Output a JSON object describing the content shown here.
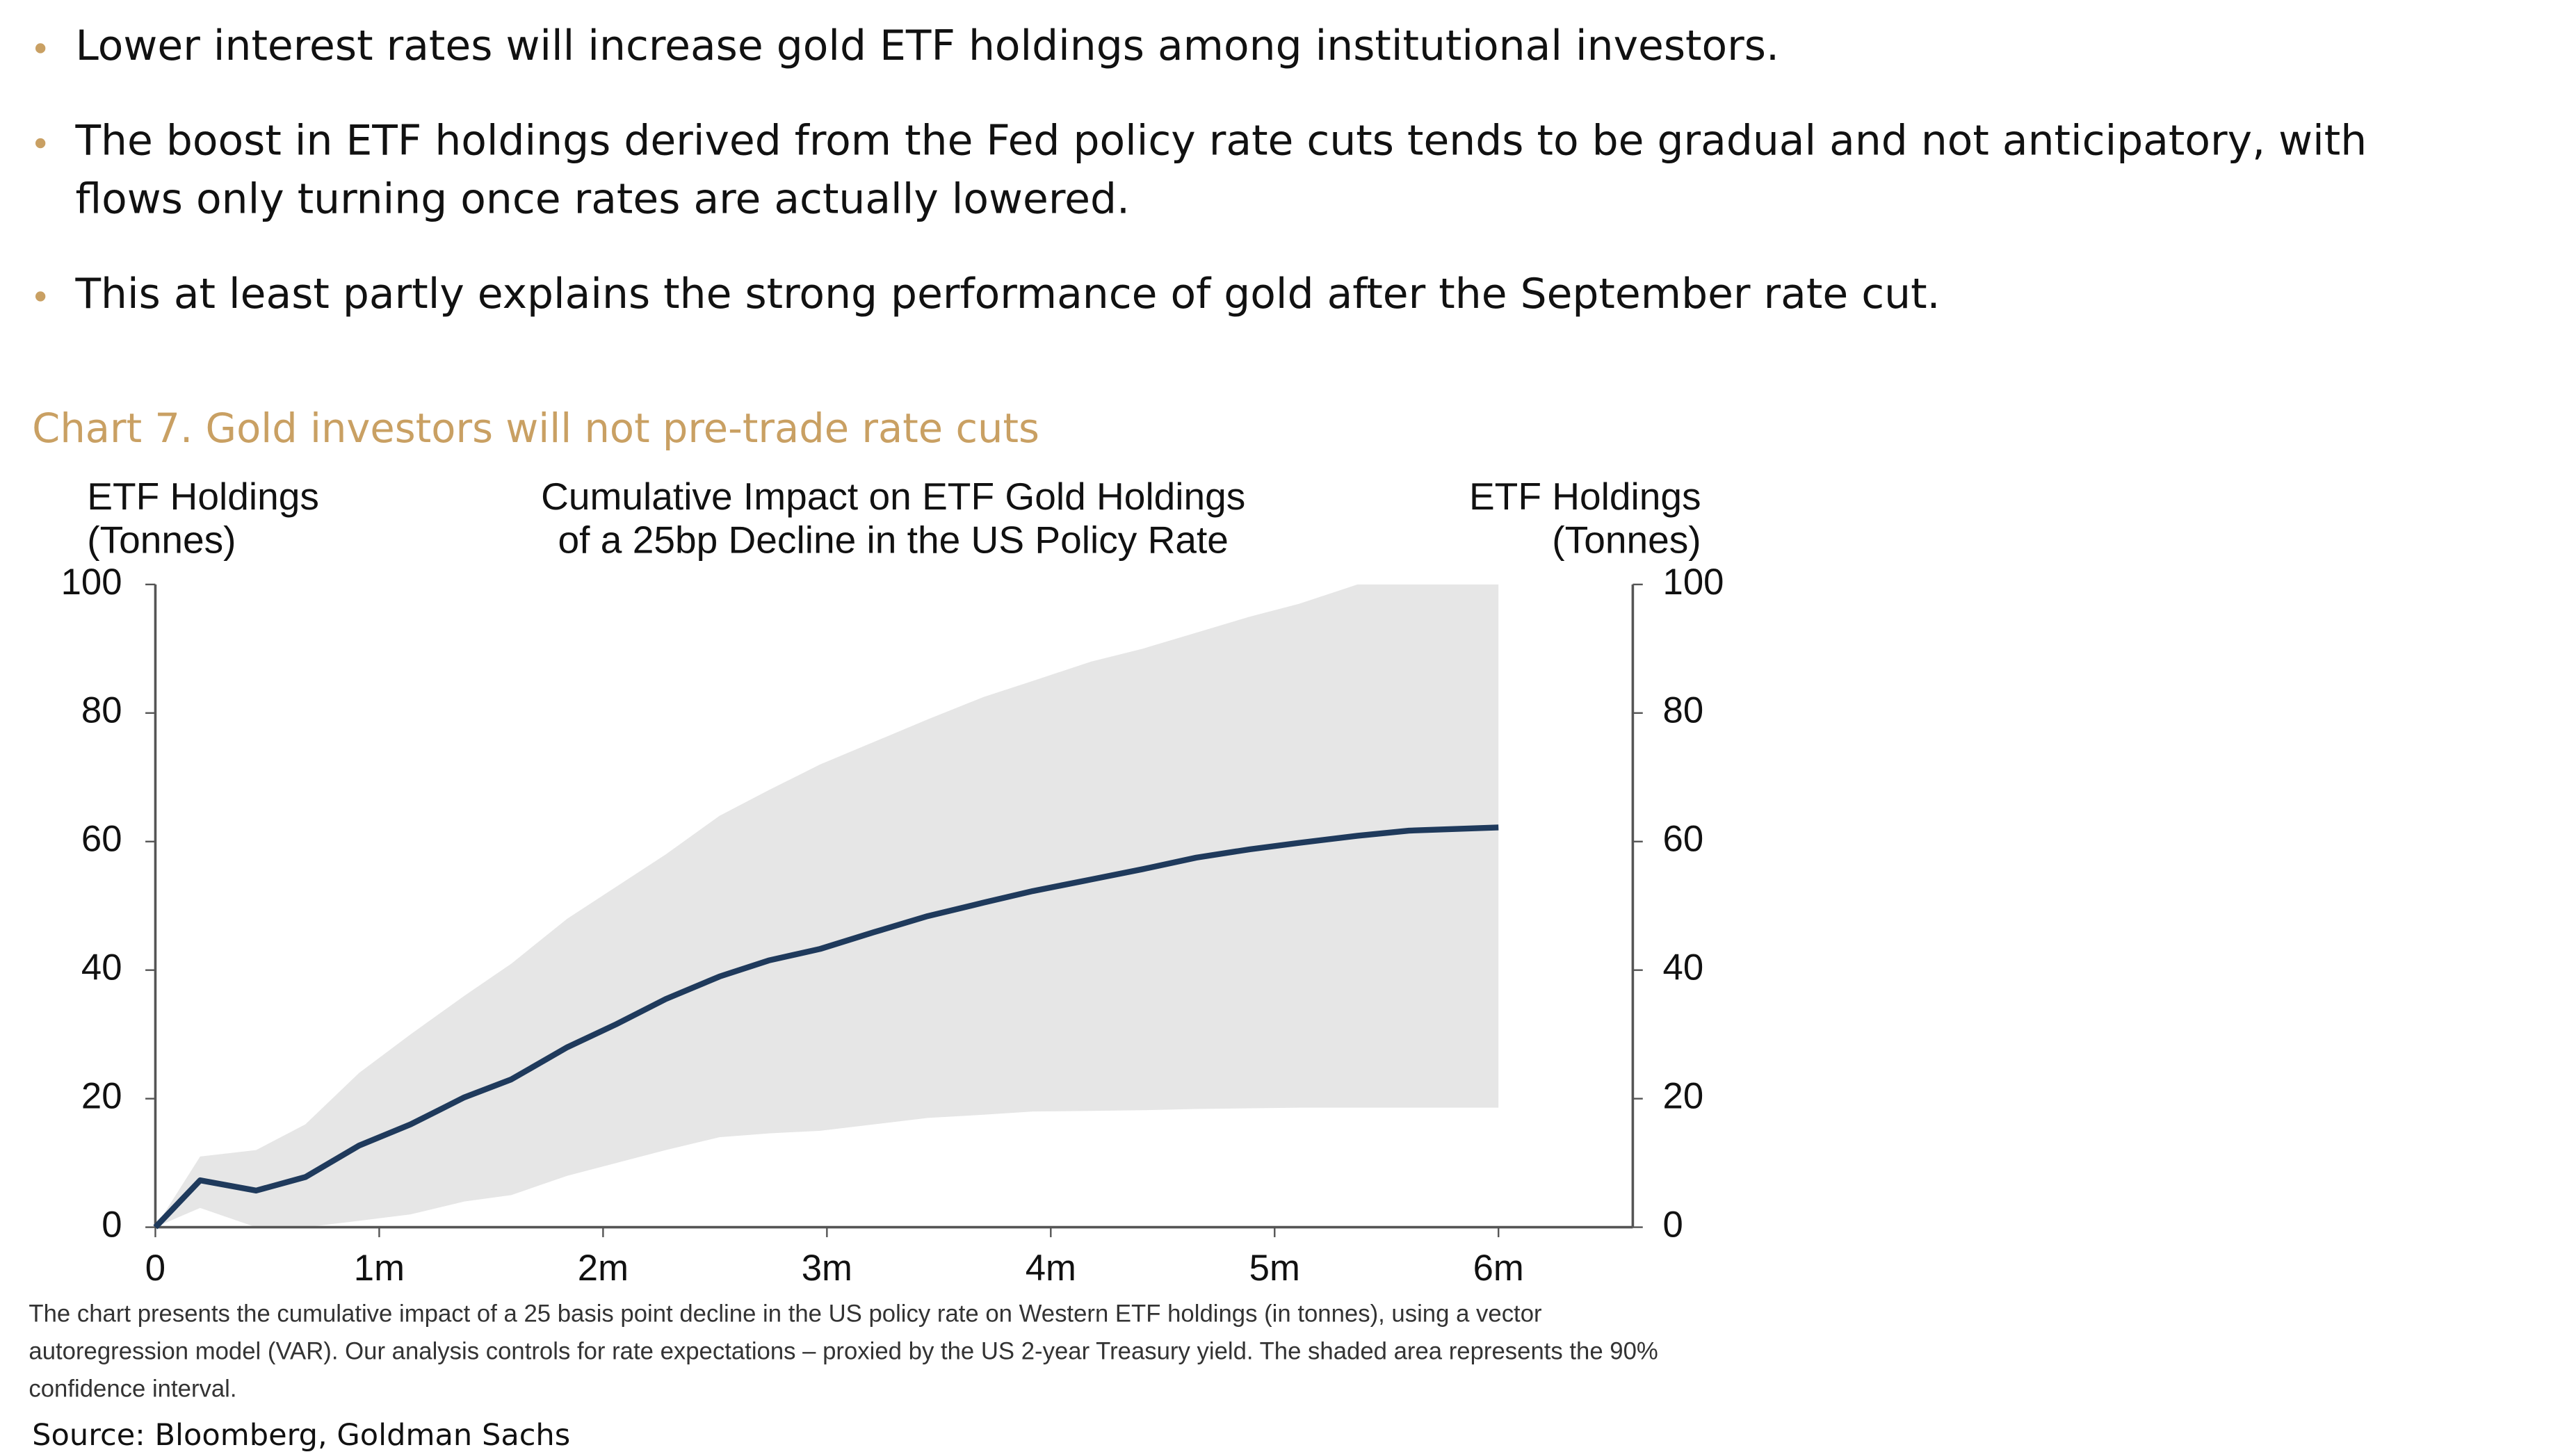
{
  "bullets": [
    [
      "Lower interest rates will increase gold ETF holdings among institutional investors."
    ],
    [
      "The boost in ETF holdings derived from the Fed policy rate cuts tends to be gradual and not anticipatory, with",
      "flows only turning once rates are actually lowered."
    ],
    [
      "This at least partly explains the strong performance of gold after the September rate cut."
    ]
  ],
  "chart_heading": "Chart 7. Gold investors will not pre-trade rate cuts",
  "chart_data": {
    "type": "line",
    "title": [
      "Cumulative Impact on ETF Gold Holdings",
      "of a 25bp Decline in the US Policy Rate"
    ],
    "ylabel": [
      "ETF Holdings",
      "(Tonnes)"
    ],
    "y2label": [
      "ETF Holdings",
      "(Tonnes)"
    ],
    "x": [
      0,
      0.2,
      0.45,
      0.67,
      0.91,
      1.14,
      1.38,
      1.59,
      1.84,
      2.06,
      2.28,
      2.52,
      2.74,
      2.97,
      3.21,
      3.45,
      3.7,
      3.92,
      4.18,
      4.41,
      4.65,
      4.89,
      5.11,
      5.37,
      5.6,
      6
    ],
    "series": [
      {
        "color": "#1f3a5c",
        "values": [
          0,
          7.3,
          5.7,
          7.8,
          12.7,
          16,
          20.2,
          23,
          28,
          31.6,
          35.5,
          39,
          41.5,
          43.3,
          45.9,
          48.4,
          50.5,
          52.3,
          54.1,
          55.7,
          57.5,
          58.8,
          59.8,
          60.9,
          61.7,
          62.2
        ]
      }
    ],
    "band": {
      "color": "#e6e6e6",
      "upper": [
        0,
        11,
        12,
        16,
        24,
        30,
        36,
        41,
        48,
        53,
        58,
        64,
        68,
        72,
        75.5,
        79,
        82.5,
        85,
        88,
        90,
        92.5,
        95,
        97,
        100,
        100,
        100
      ],
      "lower": [
        0,
        3,
        0,
        0,
        1,
        2,
        4,
        5,
        8,
        10,
        12,
        14,
        14.6,
        15,
        16,
        17,
        17.5,
        18,
        18.1,
        18.2,
        18.4,
        18.5,
        18.6,
        18.6,
        18.6,
        18.6
      ]
    },
    "xlim": [
      0,
      6.6
    ],
    "xticks": [
      0,
      {
        "value": 1,
        "label": "1m"
      },
      {
        "value": 2,
        "label": "2m"
      },
      {
        "value": 3,
        "label": "3m"
      },
      {
        "value": 4,
        "label": "4m"
      },
      {
        "value": 5,
        "label": "5m"
      },
      {
        "value": 6,
        "label": "6m"
      }
    ],
    "ylim": [
      0,
      100
    ],
    "yticks": [
      0,
      20,
      40,
      60,
      80,
      100
    ],
    "y2lim": [
      0,
      100
    ],
    "y2ticks": [
      0,
      20,
      40,
      60,
      80,
      100
    ]
  },
  "note": [
    "The chart presents the cumulative impact of a 25 basis point decline in the US policy rate on Western ETF holdings (in tonnes), using a vector",
    "autoregression model (VAR). Our analysis controls for rate expectations – proxied by the US 2-year Treasury yield. The shaded area represents the 90%",
    "confidence interval."
  ],
  "source": "Source: Bloomberg, Goldman Sachs"
}
